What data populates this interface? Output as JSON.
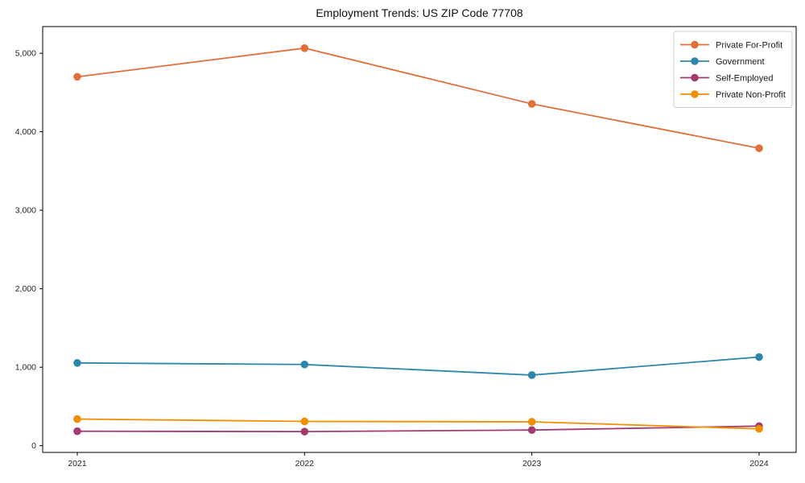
{
  "chart_data": {
    "type": "line",
    "title": "Employment Trends: US ZIP Code 77708",
    "xlabel": "",
    "ylabel": "",
    "x": [
      2021,
      2022,
      2023,
      2024
    ],
    "series": [
      {
        "name": "Private For-Profit",
        "color": "#E0703A",
        "values": [
          4700,
          5065,
          4355,
          3790
        ]
      },
      {
        "name": "Government",
        "color": "#2E86AB",
        "values": [
          1055,
          1035,
          900,
          1130
        ]
      },
      {
        "name": "Self-Employed",
        "color": "#A23B72",
        "values": [
          185,
          180,
          200,
          250
        ]
      },
      {
        "name": "Private Non-Profit",
        "color": "#F18F01",
        "values": [
          340,
          310,
          305,
          215
        ]
      }
    ],
    "yticks": [
      0,
      1000,
      2000,
      3000,
      4000,
      5000
    ],
    "ytick_labels": [
      "0",
      "1,000",
      "2,000",
      "3,000",
      "4,000",
      "5,000"
    ],
    "ylim": [
      -85,
      5340
    ],
    "grid": false,
    "legend_position": "upper right",
    "marker": "o",
    "axis_color": "#000000",
    "tick_label_color": "#262626",
    "legend_border_color": "#cccccc",
    "background_color": "#ffffff"
  }
}
